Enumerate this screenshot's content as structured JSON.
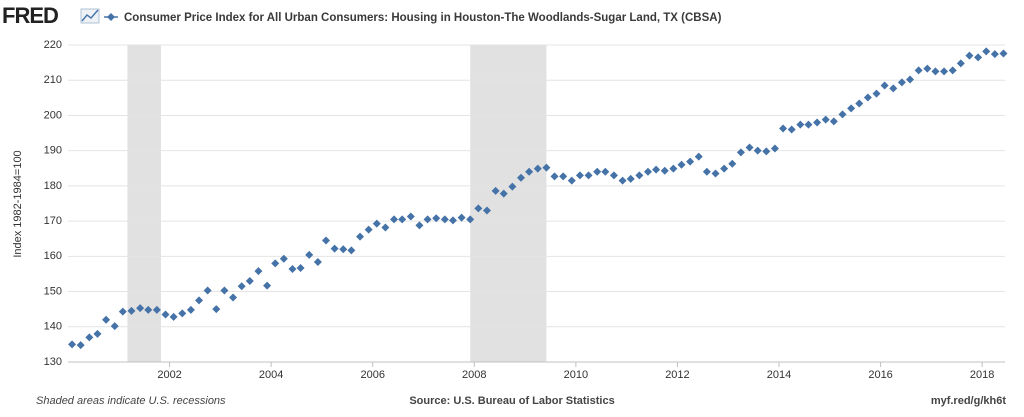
{
  "logo": "FRED",
  "chart_data": {
    "type": "scatter",
    "title": "Consumer Price Index for All Urban Consumers: Housing in Houston-The Woodlands-Sugar Land, TX (CBSA)",
    "y_label": "Index 1982-1984=100",
    "note": "Shaded areas indicate U.S. recessions",
    "source": "Source: U.S. Bureau of Labor Statistics",
    "link": "myf.red/g/kh6t",
    "xlim": [
      2000,
      2018.45
    ],
    "ylim": [
      130,
      220
    ],
    "xticks": [
      2002,
      2004,
      2006,
      2008,
      2010,
      2012,
      2014,
      2016,
      2018
    ],
    "yticks": [
      130,
      140,
      150,
      160,
      170,
      180,
      190,
      200,
      210,
      220
    ],
    "grid": true,
    "recessions": [
      [
        2001.17,
        2001.83
      ],
      [
        2007.92,
        2009.42
      ]
    ],
    "series": [
      {
        "name": "Consumer Price Index for All Urban Consumers: Housing in Houston-The Woodlands-Sugar Land, TX (CBSA)",
        "color": "#4572a7",
        "x": [
          2000.08,
          2000.25,
          2000.42,
          2000.58,
          2000.75,
          2000.92,
          2001.08,
          2001.25,
          2001.42,
          2001.58,
          2001.75,
          2001.92,
          2002.08,
          2002.25,
          2002.42,
          2002.58,
          2002.75,
          2002.92,
          2003.08,
          2003.25,
          2003.42,
          2003.58,
          2003.75,
          2003.92,
          2004.08,
          2004.25,
          2004.42,
          2004.58,
          2004.75,
          2004.92,
          2005.08,
          2005.25,
          2005.42,
          2005.58,
          2005.75,
          2005.92,
          2006.08,
          2006.25,
          2006.42,
          2006.58,
          2006.75,
          2006.92,
          2007.08,
          2007.25,
          2007.42,
          2007.58,
          2007.75,
          2007.92,
          2008.08,
          2008.25,
          2008.42,
          2008.58,
          2008.75,
          2008.92,
          2009.08,
          2009.25,
          2009.42,
          2009.58,
          2009.75,
          2009.92,
          2010.08,
          2010.25,
          2010.42,
          2010.58,
          2010.75,
          2010.92,
          2011.08,
          2011.25,
          2011.42,
          2011.58,
          2011.75,
          2011.92,
          2012.08,
          2012.25,
          2012.42,
          2012.58,
          2012.75,
          2012.92,
          2013.08,
          2013.25,
          2013.42,
          2013.58,
          2013.75,
          2013.92,
          2014.08,
          2014.25,
          2014.42,
          2014.58,
          2014.75,
          2014.92,
          2015.08,
          2015.25,
          2015.42,
          2015.58,
          2015.75,
          2015.92,
          2016.08,
          2016.25,
          2016.42,
          2016.58,
          2016.75,
          2016.92,
          2017.08,
          2017.25,
          2017.42,
          2017.58,
          2017.75,
          2017.92,
          2018.08,
          2018.25,
          2018.42
        ],
        "values": [
          135,
          134.8,
          137,
          138,
          142,
          140.2,
          144.3,
          144.5,
          145.3,
          144.8,
          144.8,
          143.5,
          142.8,
          143.8,
          144.8,
          147.5,
          150.3,
          145,
          150.3,
          148.3,
          151.5,
          153,
          155.8,
          151.7,
          158,
          159.3,
          156.4,
          156.7,
          160.4,
          158.4,
          164.5,
          162.2,
          162,
          161.7,
          165.6,
          167.6,
          169.3,
          168.2,
          170.5,
          170.5,
          171.3,
          168.8,
          170.5,
          170.8,
          170.5,
          170.2,
          171,
          170.5,
          173.6,
          173,
          178.6,
          177.8,
          179.8,
          182.3,
          184,
          184.9,
          185.2,
          182.7,
          182.7,
          181.5,
          183,
          183,
          184,
          184,
          183,
          181.5,
          182,
          183,
          184,
          184.6,
          184.3,
          184.9,
          186,
          186.9,
          188.3,
          184,
          183.5,
          184.9,
          186.3,
          189.5,
          190.9,
          190,
          189.8,
          190.6,
          196.3,
          196,
          197.4,
          197.4,
          198,
          198.8,
          198.3,
          200.3,
          202,
          203.4,
          205.1,
          206.2,
          208.5,
          207.7,
          209.4,
          210.2,
          212.8,
          213.3,
          212.5,
          212.5,
          212.8,
          214.8,
          217,
          216.5,
          218.2,
          217.4,
          217.6
        ]
      }
    ]
  }
}
